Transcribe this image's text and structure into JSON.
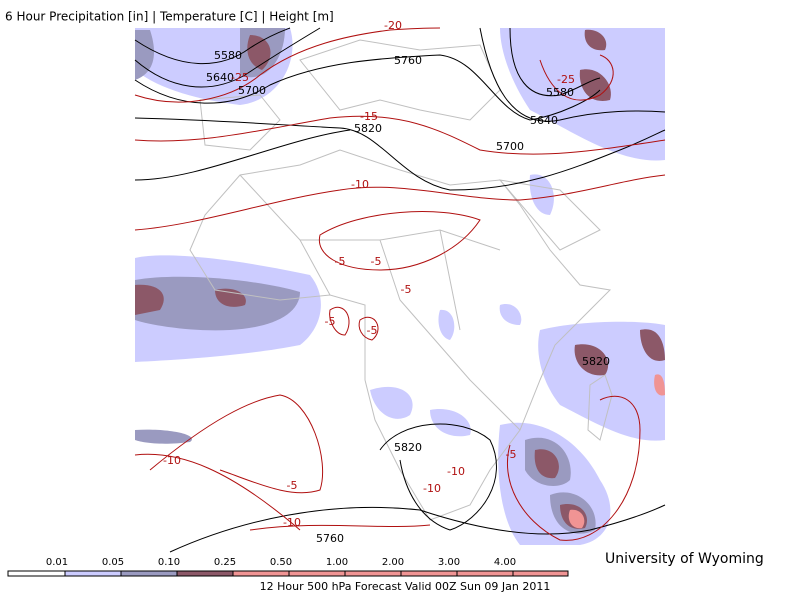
{
  "header": {
    "title": "6 Hour Precipitation [in] | Temperature [C] | Height [m]"
  },
  "contour_labels": {
    "height": [
      "5580",
      "5640",
      "5700",
      "5760",
      "5820",
      "5700",
      "5640",
      "5580",
      "5820",
      "5820",
      "5760"
    ],
    "temperature": [
      "-20",
      "-25",
      "-15",
      "-10",
      "-25",
      "-5",
      "-5",
      "-5",
      "-5",
      "-5",
      "-10",
      "-5",
      "-10",
      "-10",
      "-10",
      "-5"
    ]
  },
  "colorbar": {
    "labels": [
      "0.01",
      "0.05",
      "0.10",
      "0.25",
      "0.50",
      "1.00",
      "2.00",
      "3.00",
      "4.00"
    ],
    "colors": [
      "#ffffff",
      "#ccccff",
      "#9a9ac0",
      "#8c5868",
      "#f09494",
      "#f09494",
      "#f09494",
      "#f09494",
      "#f09494",
      "#f09494"
    ]
  },
  "credit": "University of Wyoming",
  "footer": "12 Hour 500 hPa Forecast Valid 00Z Sun 09 Jan 2011"
}
